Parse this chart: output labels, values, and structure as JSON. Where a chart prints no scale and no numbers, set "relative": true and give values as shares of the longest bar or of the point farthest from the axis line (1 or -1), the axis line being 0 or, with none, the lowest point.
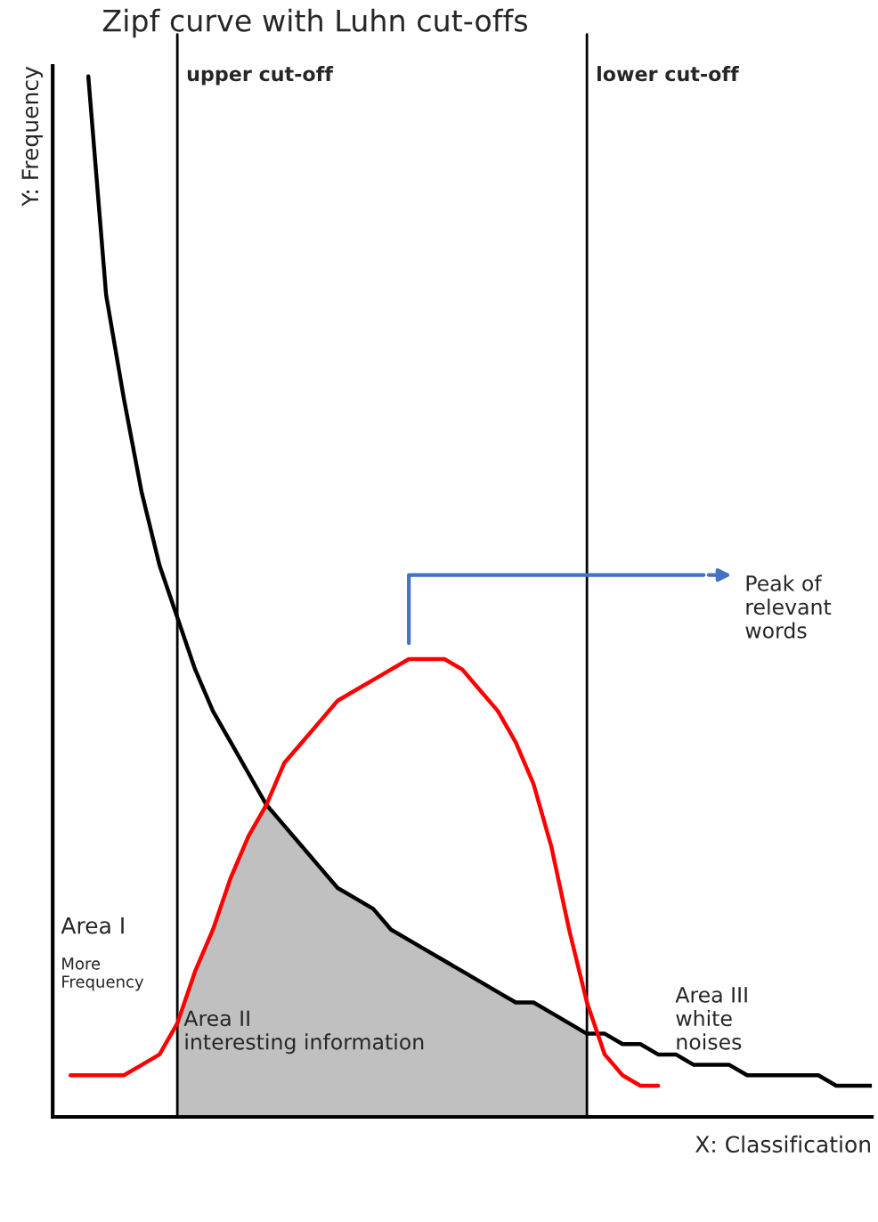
{
  "chart_data": {
    "type": "line",
    "title": "Zipf curve with Luhn cut-offs",
    "xlabel": "X: Classification",
    "ylabel": "Y: Frequency",
    "relative": true,
    "categories": [
      null,
      null,
      null,
      null,
      null,
      null,
      null,
      null,
      null,
      null,
      null,
      null,
      null,
      null,
      null,
      null,
      null,
      null,
      null,
      null,
      null,
      null,
      null,
      null,
      null,
      null,
      null,
      null,
      null,
      null,
      null,
      null,
      null,
      null,
      null,
      null,
      null,
      null,
      null,
      null,
      null,
      null,
      null,
      null,
      null,
      null,
      null
    ],
    "series": [
      {
        "color": "#000000",
        "values": [
          null,
          null,
          1.0,
          0.79,
          0.69,
          0.6,
          0.53,
          0.48,
          0.43,
          0.39,
          0.36,
          0.33,
          0.3,
          0.28,
          0.26,
          0.24,
          0.22,
          0.21,
          0.2,
          0.18,
          0.17,
          0.16,
          0.15,
          0.14,
          0.13,
          0.12,
          0.11,
          0.11,
          0.1,
          0.09,
          0.08,
          0.08,
          0.07,
          0.07,
          0.06,
          0.06,
          0.05,
          0.05,
          0.05,
          0.04,
          0.04,
          0.04,
          0.04,
          0.04,
          0.03,
          0.03,
          0.03
        ]
      },
      {
        "color": "#ff0000",
        "values": [
          null,
          0.04,
          0.04,
          0.04,
          0.04,
          0.05,
          0.06,
          0.09,
          0.14,
          0.18,
          0.23,
          0.27,
          0.3,
          0.34,
          0.36,
          0.38,
          0.4,
          0.41,
          0.42,
          0.43,
          0.44,
          0.44,
          0.44,
          0.43,
          0.41,
          0.39,
          0.36,
          0.32,
          0.26,
          0.18,
          0.11,
          0.06,
          0.04,
          0.03,
          0.03,
          null,
          null,
          null,
          null,
          null,
          null,
          null,
          null,
          null,
          null,
          null,
          null
        ]
      },
      {
        "type": "area",
        "color": "#c0c0c0",
        "values": [
          null,
          null,
          null,
          null,
          null,
          null,
          null,
          0.09,
          0.14,
          0.18,
          0.23,
          0.27,
          0.3,
          0.28,
          0.26,
          0.24,
          0.22,
          0.21,
          0.2,
          0.18,
          0.17,
          0.16,
          0.15,
          0.14,
          0.13,
          0.12,
          0.11,
          0.11,
          0.1,
          0.09,
          0.08,
          null,
          null,
          null,
          null,
          null,
          null,
          null,
          null,
          null,
          null,
          null,
          null,
          null,
          null,
          null,
          null
        ]
      }
    ],
    "annotations": [
      "Peak of\nrelevant\nwords",
      "Area I",
      "More\nFrequency",
      "Area II\ninteresting information",
      "Area III\nwhite\nnoises",
      "upper cut-off",
      "lower cut-off"
    ],
    "grid": false
  }
}
